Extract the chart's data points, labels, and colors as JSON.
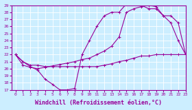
{
  "line1_x": [
    0,
    1,
    2,
    3,
    4,
    5,
    6,
    7,
    8,
    9,
    10,
    11,
    12,
    13,
    14,
    15,
    16,
    17,
    18,
    19,
    20,
    21,
    22,
    23
  ],
  "line1_y": [
    22.0,
    21.0,
    20.3,
    19.8,
    18.5,
    17.8,
    17.0,
    17.0,
    17.2,
    22.0,
    24.0,
    26.0,
    27.5,
    28.0,
    28.0,
    29.2,
    29.2,
    29.0,
    28.5,
    28.5,
    27.5,
    26.5,
    24.0,
    22.0
  ],
  "line2_x": [
    0,
    1,
    2,
    3,
    4,
    5,
    6,
    7,
    8,
    9,
    10,
    11,
    12,
    13,
    14,
    15,
    16,
    17,
    18,
    19,
    20,
    21,
    22,
    23
  ],
  "line2_y": [
    22.0,
    20.5,
    20.2,
    20.0,
    20.2,
    20.4,
    20.6,
    20.8,
    21.0,
    21.3,
    21.5,
    22.0,
    22.5,
    23.2,
    24.5,
    28.0,
    28.5,
    28.8,
    29.0,
    28.8,
    27.5,
    27.5,
    26.5,
    22.0
  ],
  "line3_x": [
    0,
    1,
    2,
    3,
    4,
    5,
    6,
    7,
    8,
    9,
    10,
    11,
    12,
    13,
    14,
    15,
    16,
    17,
    18,
    19,
    20,
    21,
    22,
    23
  ],
  "line3_y": [
    22.0,
    21.0,
    20.5,
    20.5,
    20.3,
    20.3,
    20.3,
    20.3,
    20.3,
    20.3,
    20.3,
    20.3,
    20.5,
    20.7,
    21.0,
    21.2,
    21.5,
    21.8,
    21.8,
    22.0,
    22.0,
    22.0,
    22.0,
    22.0
  ],
  "color": "#990099",
  "bg_color": "#cceeff",
  "grid_color": "#aadddd",
  "xlim": [
    -0.5,
    23
  ],
  "ylim": [
    17,
    29
  ],
  "xticks": [
    0,
    1,
    2,
    3,
    4,
    5,
    6,
    7,
    8,
    9,
    10,
    11,
    12,
    13,
    14,
    15,
    16,
    17,
    18,
    19,
    20,
    21,
    22,
    23
  ],
  "yticks": [
    17,
    18,
    19,
    20,
    21,
    22,
    23,
    24,
    25,
    26,
    27,
    28,
    29
  ],
  "xlabel": "Windchill (Refroidissement éolien,°C)",
  "marker": "+",
  "marker_size": 3,
  "line_width": 0.8,
  "font_color": "#990099",
  "tick_fontsize": 4.5,
  "label_fontsize": 6.0
}
